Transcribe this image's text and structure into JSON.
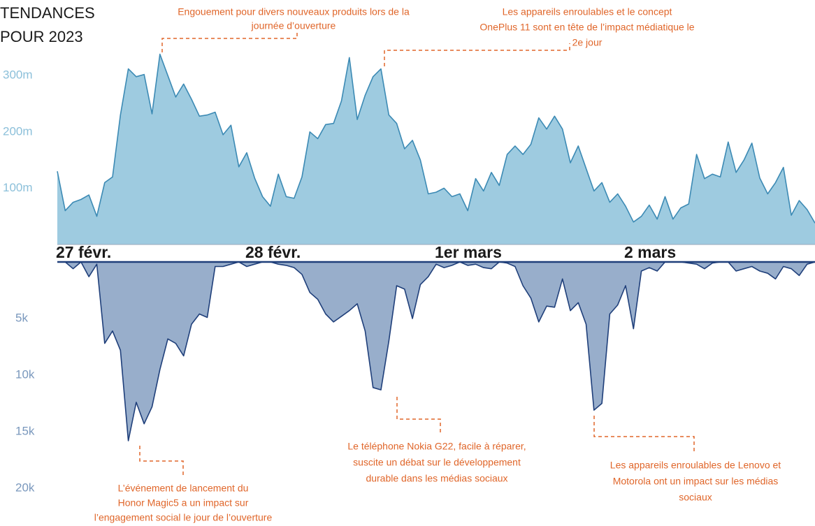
{
  "chart_data": {
    "type": "area",
    "title": [
      "TENDANCES",
      "POUR 2023"
    ],
    "categories": [
      "27 févr.",
      null,
      null,
      null,
      null,
      null,
      null,
      null,
      null,
      null,
      null,
      null,
      null,
      null,
      null,
      null,
      null,
      null,
      null,
      null,
      null,
      null,
      null,
      null,
      "28 févr.",
      null,
      null,
      null,
      null,
      null,
      null,
      null,
      null,
      null,
      null,
      null,
      null,
      null,
      null,
      null,
      null,
      null,
      null,
      null,
      null,
      null,
      null,
      null,
      "1er mars",
      null,
      null,
      null,
      null,
      null,
      null,
      null,
      null,
      null,
      null,
      null,
      null,
      null,
      null,
      null,
      null,
      null,
      null,
      null,
      null,
      null,
      null,
      null,
      "2 mars",
      null,
      null,
      null,
      null,
      null,
      null,
      null,
      null,
      null,
      null,
      null,
      null,
      null,
      null,
      null,
      null,
      null,
      null,
      null,
      null,
      null,
      null,
      null,
      null
    ],
    "series": [
      {
        "color": "#9ecbe0",
        "line_color": "#3c8ab4",
        "values": [
          130,
          60,
          75,
          80,
          88,
          50,
          110,
          120,
          230,
          312,
          298,
          302,
          232,
          338,
          300,
          262,
          285,
          258,
          228,
          230,
          235,
          195,
          212,
          138,
          163,
          118,
          85,
          68,
          125,
          85,
          82,
          120,
          200,
          188,
          213,
          215,
          255,
          332,
          222,
          265,
          298,
          312,
          230,
          215,
          170,
          185,
          150,
          90,
          93,
          100,
          85,
          90,
          60,
          117,
          95,
          128,
          105,
          160,
          175,
          160,
          178,
          225,
          205,
          228,
          205,
          145,
          175,
          135,
          95,
          110,
          75,
          90,
          68,
          40,
          50,
          70,
          45,
          85,
          45,
          65,
          72,
          160,
          117,
          125,
          120,
          182,
          128,
          150,
          180,
          118,
          90,
          110,
          137,
          52,
          78,
          62,
          38
        ]
      },
      {
        "color": "#98aecb",
        "line_color": "#1f3f7a",
        "axis": "y2",
        "values": [
          0,
          0,
          0.6,
          0,
          1.3,
          0.2,
          7.2,
          6.1,
          7.8,
          15.8,
          12.4,
          14.3,
          12.8,
          9.5,
          6.8,
          7.2,
          8.3,
          5.5,
          4.6,
          4.9,
          0.4,
          0.4,
          0.2,
          0,
          0.4,
          0.2,
          0,
          0,
          0.2,
          0.3,
          0.5,
          1.1,
          2.7,
          3.3,
          4.6,
          5.3,
          4.8,
          4.3,
          3.7,
          6.1,
          11.1,
          11.3,
          7.0,
          2.1,
          2.4,
          5.0,
          2.0,
          1.3,
          0.2,
          0.5,
          0.3,
          0,
          0.3,
          0.2,
          0.5,
          0.6,
          0,
          0.1,
          0.4,
          2.1,
          3.2,
          5.3,
          3.9,
          4.0,
          1.5,
          4.3,
          3.6,
          5.5,
          13.1,
          12.5,
          4.6,
          3.8,
          2.1,
          5.9,
          0.8,
          0.5,
          0.8,
          0,
          0,
          0,
          0.1,
          0.2,
          0.6,
          0.1,
          0,
          0,
          0.8,
          0.6,
          0.4,
          0.8,
          1.0,
          1.5,
          0.4,
          0.6,
          1.2,
          0.2,
          0
        ]
      }
    ],
    "ylim": [
      0,
      340
    ],
    "yticks": [
      {
        "value": 100,
        "label": "100m"
      },
      {
        "value": 200,
        "label": "200m"
      },
      {
        "value": 300,
        "label": "300m"
      }
    ],
    "y2lim": [
      0,
      20
    ],
    "y2ticks": [
      {
        "value": 5,
        "label": "5k"
      },
      {
        "value": 10,
        "label": "10k"
      },
      {
        "value": 15,
        "label": "15k"
      },
      {
        "value": 20,
        "label": "20k"
      }
    ],
    "annotations": [
      {
        "text": [
          "Engouement pour divers nouveaux produits lors de la",
          "journée d’ouverture"
        ]
      },
      {
        "text": [
          "Les appareils enroulables et le concept",
          "OnePlus 11 sont en tête de l’impact médiatique le",
          "2e jour"
        ]
      },
      {
        "text": [
          "Le téléphone Nokia G22, facile à réparer,",
          "suscite un débat sur le développement",
          "durable dans les médias sociaux"
        ]
      },
      {
        "text": [
          "Les appareils enroulables de Lenovo et",
          "Motorola ont un impact sur les médias",
          "sociaux"
        ]
      },
      {
        "text": [
          "L’événement de lancement du",
          "Honor Magic5 a un impact sur",
          "l’engagement social le jour de l’ouverture"
        ]
      }
    ]
  }
}
